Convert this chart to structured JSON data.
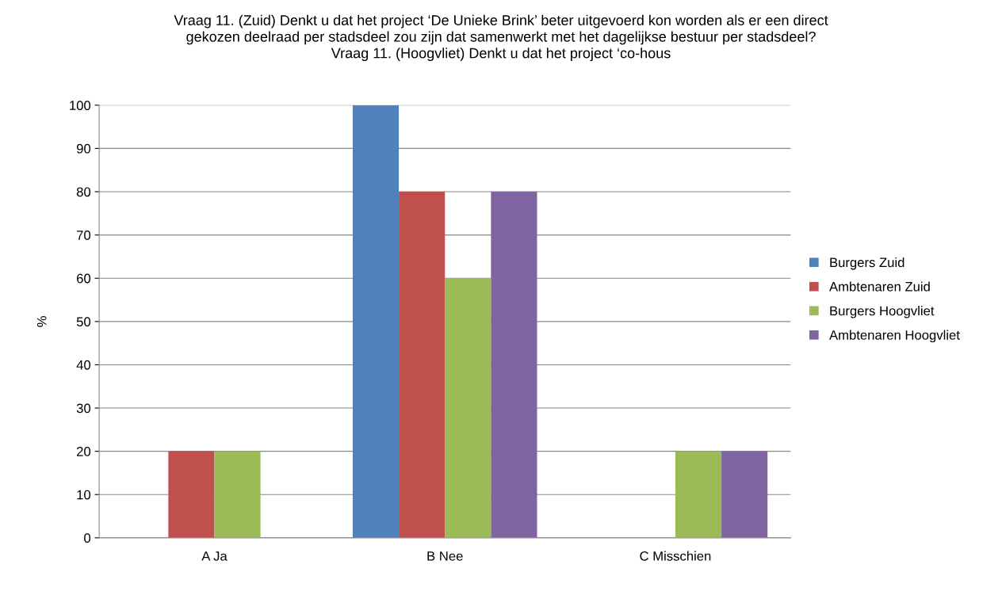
{
  "chart_data": {
    "type": "bar",
    "title": "Vraag 11. (Zuid) Denkt u dat het project ‘De Unieke Brink’ beter uitgevoerd kon worden als er een direct\ngekozen deelraad per stadsdeel zou zijn dat samenwerkt met het dagelijkse bestuur per stadsdeel?\nVraag 11. (Hoogvliet) Denkt u dat het project ‘co-hous",
    "ylabel": "%",
    "categories": [
      "A Ja",
      "B Nee",
      "C Misschien"
    ],
    "series": [
      {
        "name": "Burgers Zuid",
        "color": "#4f81bd",
        "values": [
          0,
          100,
          0
        ]
      },
      {
        "name": "Ambtenaren Zuid",
        "color": "#c0504d",
        "values": [
          20,
          80,
          0
        ]
      },
      {
        "name": "Burgers Hoogvliet",
        "color": "#9bbb59",
        "values": [
          20,
          60,
          20
        ]
      },
      {
        "name": "Ambtenaren Hoogvliet",
        "color": "#8064a2",
        "values": [
          0,
          80,
          20
        ]
      }
    ],
    "ylim": [
      0,
      100
    ],
    "yticks": [
      0,
      10,
      20,
      30,
      40,
      50,
      60,
      70,
      80,
      90,
      100
    ],
    "grid": "y",
    "legend": "right"
  }
}
